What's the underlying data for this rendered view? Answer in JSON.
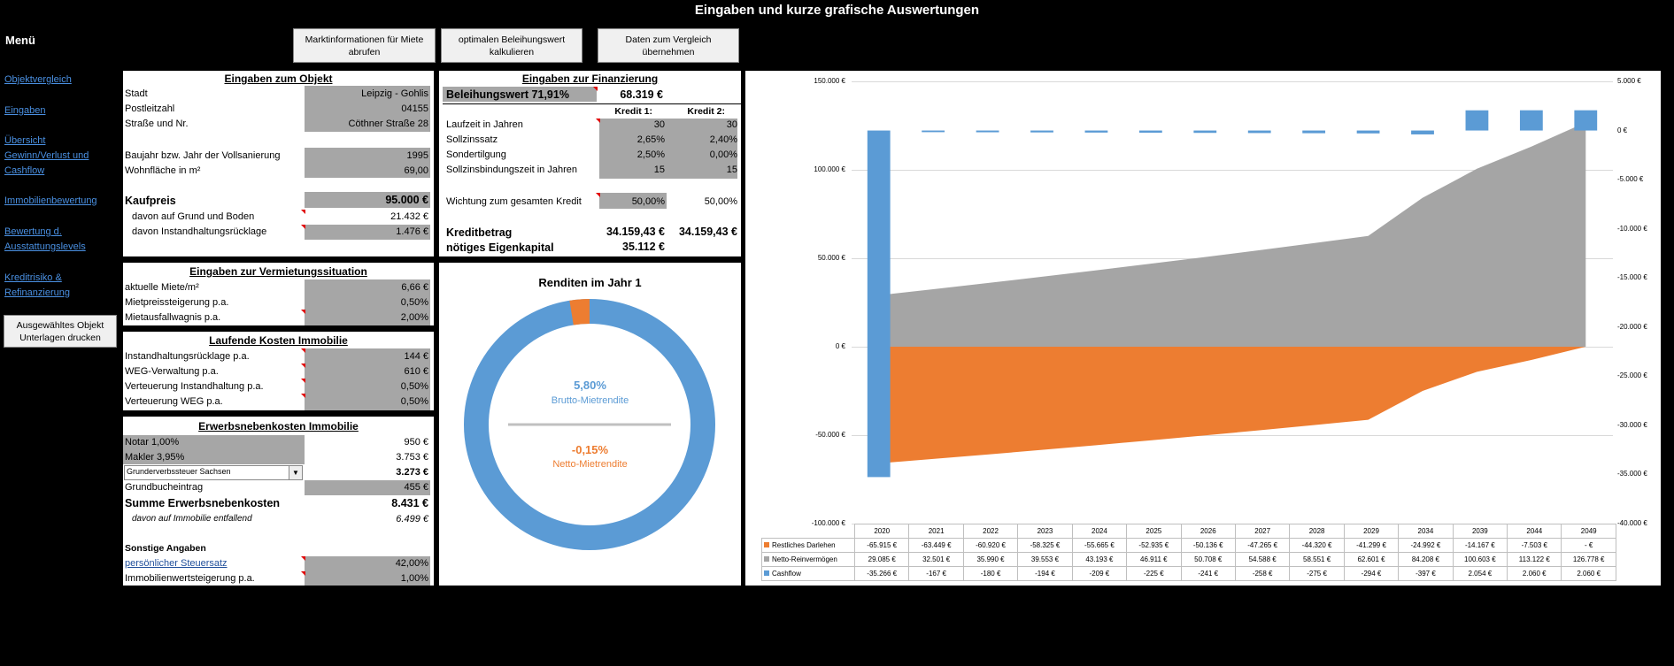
{
  "title": "Eingaben und kurze grafische Auswertungen",
  "menu": {
    "title": "Menü",
    "links": [
      "Objektvergleich",
      "Eingaben",
      "Übersicht\nGewinn/Verlust und\nCashflow",
      "Immobilienbewertung",
      "Bewertung d.\nAusstattungslevels",
      "Kreditrisiko &\nRefinanzierung"
    ],
    "print_button": "Ausgewähltes Objekt\nUnterlagen drucken"
  },
  "toolbar": {
    "market_info": "Marktinformationen für Miete abrufen",
    "optimal_loan": "optimalen Beleihungswert kalkulieren",
    "take_data": "Daten zum Vergleich übernehmen"
  },
  "objekt": {
    "title": "Eingaben zum Objekt",
    "stadt_label": "Stadt",
    "stadt": "Leipzig - Gohlis",
    "plz_label": "Postleitzahl",
    "plz": "04155",
    "strasse_label": "Straße und Nr.",
    "strasse": "Cöthner Straße 28",
    "baujahr_label": "Baujahr bzw. Jahr der Vollsanierung",
    "baujahr": "1995",
    "wohnflaeche_label": "Wohnfläche in m²",
    "wohnflaeche": "69,00",
    "kaufpreis_label": "Kaufpreis",
    "kaufpreis": "95.000 €",
    "grund_label": "davon auf Grund und Boden",
    "grund": "21.432 €",
    "ihr_label": "davon Instandhaltungsrücklage",
    "ihr": "1.476 €"
  },
  "finanzierung": {
    "title": "Eingaben zur Finanzierung",
    "beleihung_label": "Beleihungswert 71,91%",
    "beleihung": "68.319 €",
    "kredit1": "Kredit 1:",
    "kredit2": "Kredit 2:",
    "rows": [
      {
        "label": "Laufzeit in Jahren",
        "k1": "30",
        "k2": "30"
      },
      {
        "label": "Sollzinssatz",
        "k1": "2,65%",
        "k2": "2,40%"
      },
      {
        "label": "Sondertilgung",
        "k1": "2,50%",
        "k2": "0,00%"
      },
      {
        "label": "Sollzinsbindungszeit in Jahren",
        "k1": "15",
        "k2": "15"
      }
    ],
    "wichtung_label": "Wichtung zum gesamten Kredit",
    "wichtung_k1": "50,00%",
    "wichtung_k2": "50,00%",
    "kreditbetrag_label": "Kreditbetrag",
    "kreditbetrag_k1": "34.159,43 €",
    "kreditbetrag_k2": "34.159,43 €",
    "eigenkapital_label": "nötiges Eigenkapital",
    "eigenkapital": "35.112 €"
  },
  "vermietung": {
    "title": "Eingaben zur Vermietungssituation",
    "miete_label": "aktuelle Miete/m²",
    "miete": "6,66 €",
    "steigerung_label": "Mietpreissteigerung p.a.",
    "steigerung": "0,50%",
    "ausfall_label": "Mietausfallwagnis p.a.",
    "ausfall": "2,00%"
  },
  "kosten": {
    "title": "Laufende Kosten Immobilie",
    "rows": [
      {
        "label": "Instandhaltungsrücklage p.a.",
        "value": "144 €"
      },
      {
        "label": "WEG-Verwaltung p.a.",
        "value": "610 €"
      },
      {
        "label": "Verteuerung Instandhaltung p.a.",
        "value": "0,50%"
      },
      {
        "label": "Verteuerung WEG p.a.",
        "value": "0,50%"
      }
    ]
  },
  "nebenkosten": {
    "title": "Erwerbsnebenkosten Immobilie",
    "notar_label": "Notar 1,00%",
    "notar": "950 €",
    "makler_label": "Makler 3,95%",
    "makler": "3.753 €",
    "grunderwerb_select": "Grunderverbssteuer Sachsen",
    "grunderwerb": "3.273 €",
    "grundbuch_label": "Grundbucheintrag",
    "grundbuch": "455 €",
    "summe_label": "Summe Erwerbsnebenkosten",
    "summe": "8.431 €",
    "immo_label": "davon auf Immobilie entfallend",
    "immo": "6.499 €",
    "sonstige_title": "Sonstige Angaben",
    "steuer_label": "persönlicher Steuersatz",
    "steuer": "42,00%",
    "wert_label": "Immobilienwertsteigerung p.a.",
    "wert": "1,00%"
  },
  "donut": {
    "title": "Renditen im Jahr 1",
    "brutto_value": "5,80%",
    "brutto_label": "Brutto-Mietrendite",
    "netto_value": "-0,15%",
    "netto_label": "Netto-Mietrendite",
    "ring_fraction": 0.0255,
    "color_main": "#5b9bd5",
    "color_accent": "#ed7d31"
  },
  "chart_data": {
    "type": "area",
    "categories": [
      "2020",
      "2021",
      "2022",
      "2023",
      "2024",
      "2025",
      "2026",
      "2027",
      "2028",
      "2029",
      "2034",
      "2039",
      "2044",
      "2049"
    ],
    "left_axis_ticks": [
      "150.000 €",
      "100.000 €",
      "50.000 €",
      "0 €",
      "-50.000 €",
      "-100.000 €"
    ],
    "right_axis_ticks": [
      "5.000 €",
      "0 €",
      "-5.000 €",
      "-10.000 €",
      "-15.000 €",
      "-20.000 €",
      "-25.000 €",
      "-30.000 €",
      "-35.000 €",
      "-40.000 €"
    ],
    "ylim_left": [
      -100000,
      150000
    ],
    "ylim_right": [
      -40000,
      5000
    ],
    "series": [
      {
        "name": "Restliches Darlehen",
        "axis": "left",
        "color": "#ed7d31",
        "values": [
          -65915,
          -63449,
          -60920,
          -58325,
          -55665,
          -52935,
          -50136,
          -47265,
          -44320,
          -41299,
          -24992,
          -14167,
          -7503,
          0
        ],
        "labels": [
          "-65.915 €",
          "-63.449 €",
          "-60.920 €",
          "-58.325 €",
          "-55.665 €",
          "-52.935 €",
          "-50.136 €",
          "-47.265 €",
          "-44.320 €",
          "-41.299 €",
          "-24.992 €",
          "-14.167 €",
          "-7.503 €",
          "-  €"
        ]
      },
      {
        "name": "Netto-Reinvermögen",
        "axis": "left",
        "color": "#a5a5a5",
        "values": [
          29085,
          32501,
          35990,
          39553,
          43193,
          46911,
          50708,
          54588,
          58551,
          62601,
          84208,
          100603,
          113122,
          126778
        ],
        "labels": [
          "29.085 €",
          "32.501 €",
          "35.990 €",
          "39.553 €",
          "43.193 €",
          "46.911 €",
          "50.708 €",
          "54.588 €",
          "58.551 €",
          "62.601 €",
          "84.208 €",
          "100.603 €",
          "113.122 €",
          "126.778 €"
        ]
      },
      {
        "name": "Cashflow",
        "axis": "right",
        "color": "#5b9bd5",
        "values": [
          -35266,
          -167,
          -180,
          -194,
          -209,
          -225,
          -241,
          -258,
          -275,
          -294,
          -397,
          2054,
          2060,
          2060
        ],
        "labels": [
          "-35.266 €",
          "-167 €",
          "-180 €",
          "-194 €",
          "-209 €",
          "-225 €",
          "-241 €",
          "-258 €",
          "-275 €",
          "-294 €",
          "-397 €",
          "2.054 €",
          "2.060 €",
          "2.060 €"
        ]
      }
    ]
  }
}
